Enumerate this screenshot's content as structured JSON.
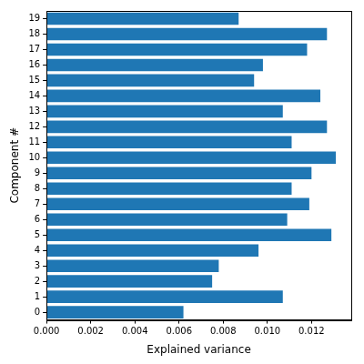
{
  "chart_data": {
    "type": "bar",
    "orientation": "horizontal",
    "x_label": "Explained variance",
    "y_label": "Component #",
    "categories": [
      "0",
      "1",
      "2",
      "3",
      "4",
      "5",
      "6",
      "7",
      "8",
      "9",
      "10",
      "11",
      "12",
      "13",
      "14",
      "15",
      "16",
      "17",
      "18",
      "19"
    ],
    "values": [
      0.0062,
      0.0107,
      0.0075,
      0.0078,
      0.0096,
      0.0129,
      0.0109,
      0.0119,
      0.0111,
      0.012,
      0.0131,
      0.0111,
      0.0127,
      0.0107,
      0.0124,
      0.0094,
      0.0098,
      0.0118,
      0.0127,
      0.0087
    ],
    "color": "#1f77b4",
    "xlim": [
      0,
      0.0138
    ],
    "xticks": [
      {
        "value": 0,
        "label": "0.000"
      },
      {
        "value": 0.002,
        "label": "0.002"
      },
      {
        "value": 0.004,
        "label": "0.004"
      },
      {
        "value": 0.006,
        "label": "0.006"
      },
      {
        "value": 0.008,
        "label": "0.008"
      },
      {
        "value": 0.01,
        "label": "0.010"
      },
      {
        "value": 0.012,
        "label": "0.012"
      }
    ],
    "grid": false
  }
}
